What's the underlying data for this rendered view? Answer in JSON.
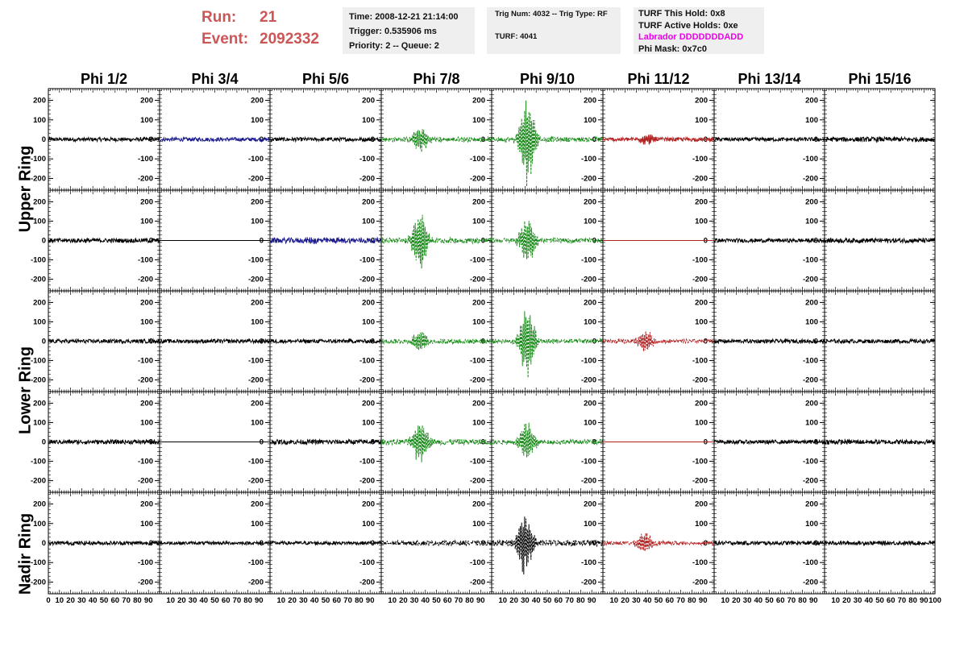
{
  "header": {
    "run_label": "Run:",
    "run_value": "21",
    "event_label": "Event:",
    "event_value": "2092332",
    "time": "Time: 2008-12-21 21:14:00",
    "trigger": "Trigger: 0.535906 ms",
    "priority": "Priority: 2 -- Queue: 2",
    "trig_num": "Trig Num: 4032 -- Trig Type: RF",
    "turf": "TURF: 4041",
    "turf_hold": "TURF This Hold: 0x8",
    "turf_active": "TURF Active Holds: 0xe",
    "labrador": "Labrador DDDDDDDADD",
    "phi_mask": "Phi Mask: 0x7c0"
  },
  "colors": {
    "black": "#000000",
    "blue": "#1a1a8c",
    "green": "#1a8a1a",
    "red": "#b02020",
    "magenta": "#ee00ee",
    "run_text": "#cc5555",
    "info_bg": "#efefef"
  },
  "chart_data": {
    "type": "line",
    "columns": [
      "Phi 1/2",
      "Phi 3/4",
      "Phi 5/6",
      "Phi 7/8",
      "Phi 9/10",
      "Phi 11/12",
      "Phi 13/14",
      "Phi 15/16"
    ],
    "rings": [
      "Upper Ring",
      "Lower Ring",
      "Nadir Ring"
    ],
    "xlim": [
      0,
      100
    ],
    "ylim": [
      -260,
      260
    ],
    "y_ticks": [
      -200,
      -100,
      0,
      100,
      200
    ],
    "y_tick_labels": [
      "-200",
      "-100",
      "0",
      "100",
      "200"
    ],
    "x_ticks": [
      0,
      10,
      20,
      30,
      40,
      50,
      60,
      70,
      80,
      90,
      100
    ],
    "x_tick_labels": [
      "0",
      "10",
      "20",
      "30",
      "40",
      "50",
      "60",
      "70",
      "80",
      "90",
      "100"
    ],
    "panels": [
      [
        {
          "color": "black",
          "amp": 10,
          "pulse": 0,
          "center": 50,
          "dashed": false
        },
        {
          "color": "blue",
          "amp": 10,
          "pulse": 0,
          "center": 50,
          "dashed": false
        },
        {
          "color": "black",
          "amp": 10,
          "pulse": 0,
          "center": 50,
          "dashed": false
        },
        {
          "color": "green",
          "amp": 12,
          "pulse": 70,
          "center": 35,
          "dashed": true
        },
        {
          "color": "green",
          "amp": 12,
          "pulse": 250,
          "center": 32,
          "dashed": true
        },
        {
          "color": "red",
          "amp": 10,
          "pulse": 30,
          "center": 40,
          "dashed": false
        },
        {
          "color": "black",
          "amp": 10,
          "pulse": 0,
          "center": 50,
          "dashed": false
        },
        {
          "color": "black",
          "amp": 12,
          "pulse": 0,
          "center": 50,
          "dashed": false
        }
      ],
      [
        {
          "color": "black",
          "amp": 11,
          "pulse": 0,
          "center": 50,
          "dashed": false
        },
        {
          "color": "black",
          "amp": 0,
          "pulse": 0,
          "center": 50,
          "dashed": false
        },
        {
          "color": "blue",
          "amp": 14,
          "pulse": 10,
          "center": 40,
          "dashed": false
        },
        {
          "color": "green",
          "amp": 14,
          "pulse": 160,
          "center": 35,
          "dashed": true
        },
        {
          "color": "green",
          "amp": 12,
          "pulse": 130,
          "center": 32,
          "dashed": true
        },
        {
          "color": "red",
          "amp": 0,
          "pulse": 0,
          "center": 50,
          "dashed": false
        },
        {
          "color": "black",
          "amp": 10,
          "pulse": 0,
          "center": 50,
          "dashed": false
        },
        {
          "color": "black",
          "amp": 12,
          "pulse": 0,
          "center": 50,
          "dashed": false
        }
      ],
      [
        {
          "color": "black",
          "amp": 10,
          "pulse": 0,
          "center": 50,
          "dashed": false
        },
        {
          "color": "black",
          "amp": 10,
          "pulse": 0,
          "center": 50,
          "dashed": false
        },
        {
          "color": "black",
          "amp": 10,
          "pulse": 0,
          "center": 50,
          "dashed": false
        },
        {
          "color": "green",
          "amp": 12,
          "pulse": 60,
          "center": 35,
          "dashed": true
        },
        {
          "color": "green",
          "amp": 12,
          "pulse": 200,
          "center": 32,
          "dashed": true
        },
        {
          "color": "red",
          "amp": 10,
          "pulse": 60,
          "center": 38,
          "dashed": true
        },
        {
          "color": "black",
          "amp": 10,
          "pulse": 0,
          "center": 50,
          "dashed": false
        },
        {
          "color": "black",
          "amp": 10,
          "pulse": 0,
          "center": 50,
          "dashed": false
        }
      ],
      [
        {
          "color": "black",
          "amp": 11,
          "pulse": 0,
          "center": 50,
          "dashed": false
        },
        {
          "color": "black",
          "amp": 0,
          "pulse": 0,
          "center": 50,
          "dashed": false
        },
        {
          "color": "black",
          "amp": 12,
          "pulse": 0,
          "center": 50,
          "dashed": false
        },
        {
          "color": "green",
          "amp": 14,
          "pulse": 120,
          "center": 35,
          "dashed": true
        },
        {
          "color": "green",
          "amp": 12,
          "pulse": 110,
          "center": 32,
          "dashed": true
        },
        {
          "color": "red",
          "amp": 0,
          "pulse": 0,
          "center": 50,
          "dashed": false
        },
        {
          "color": "black",
          "amp": 10,
          "pulse": 0,
          "center": 50,
          "dashed": false
        },
        {
          "color": "black",
          "amp": 12,
          "pulse": 0,
          "center": 50,
          "dashed": false
        }
      ],
      [
        {
          "color": "black",
          "amp": 10,
          "pulse": 0,
          "center": 50,
          "dashed": false
        },
        {
          "color": "black",
          "amp": 8,
          "pulse": 0,
          "center": 50,
          "dashed": false
        },
        {
          "color": "black",
          "amp": 9,
          "pulse": 0,
          "center": 50,
          "dashed": false
        },
        {
          "color": "black",
          "amp": 12,
          "pulse": 0,
          "center": 50,
          "dashed": true
        },
        {
          "color": "black",
          "amp": 15,
          "pulse": 170,
          "center": 30,
          "dashed": true
        },
        {
          "color": "red",
          "amp": 10,
          "pulse": 60,
          "center": 38,
          "dashed": true
        },
        {
          "color": "black",
          "amp": 10,
          "pulse": 0,
          "center": 50,
          "dashed": false
        },
        {
          "color": "black",
          "amp": 10,
          "pulse": 0,
          "center": 50,
          "dashed": false
        }
      ]
    ]
  }
}
